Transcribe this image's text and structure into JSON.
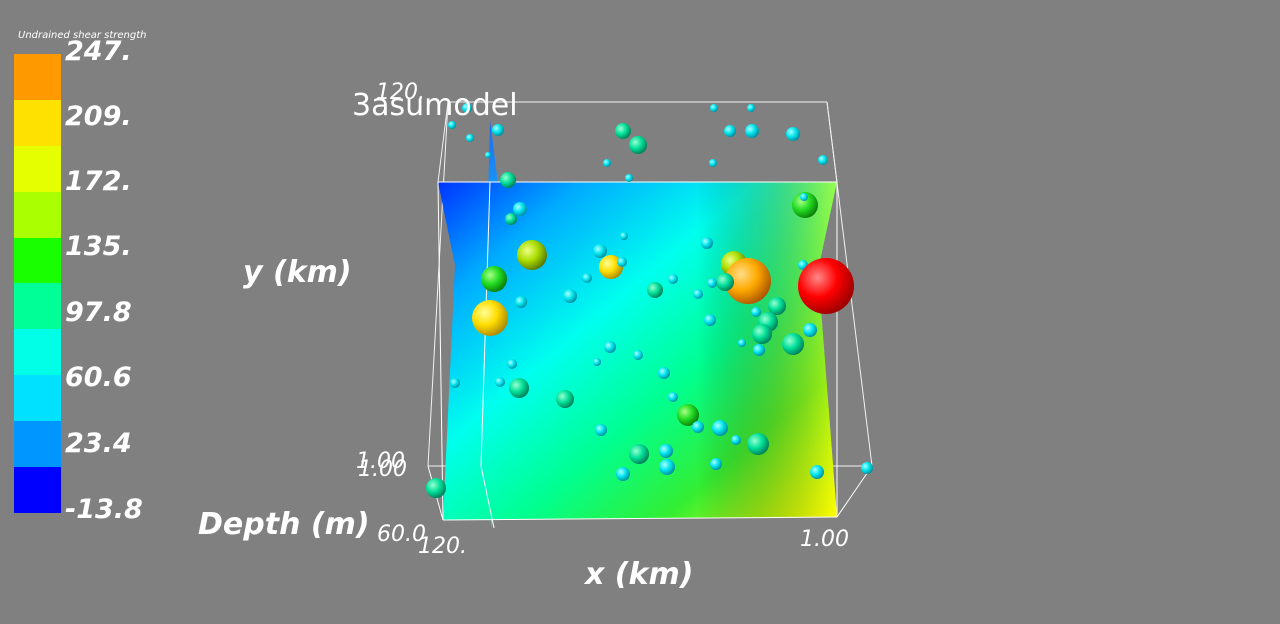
{
  "legend": {
    "title": "Undrained shear strength",
    "ticks": [
      "247.",
      "209.",
      "172.",
      "135.",
      "97.8",
      "60.6",
      "23.4",
      "-13.8"
    ],
    "colors": [
      "#ff9900",
      "#ffe100",
      "#e6ff00",
      "#aaff00",
      "#19ff00",
      "#00ff96",
      "#00ffe6",
      "#00e1ff",
      "#0096ff",
      "#0000ff"
    ]
  },
  "model_name": "3asumodel",
  "axes": {
    "y_label": "y (km)",
    "x_label": "x (km)",
    "depth_label": "Depth (m)",
    "y_top_tick": "120.",
    "y_bottom_tick_1": "1.00",
    "y_bottom_tick_2": "1.00",
    "depth_tick": "60.0",
    "x_left_tick": "120.",
    "x_right_tick": "1.00"
  },
  "colors": {
    "background": "#808080",
    "bounding_box": "#ffffff"
  }
}
